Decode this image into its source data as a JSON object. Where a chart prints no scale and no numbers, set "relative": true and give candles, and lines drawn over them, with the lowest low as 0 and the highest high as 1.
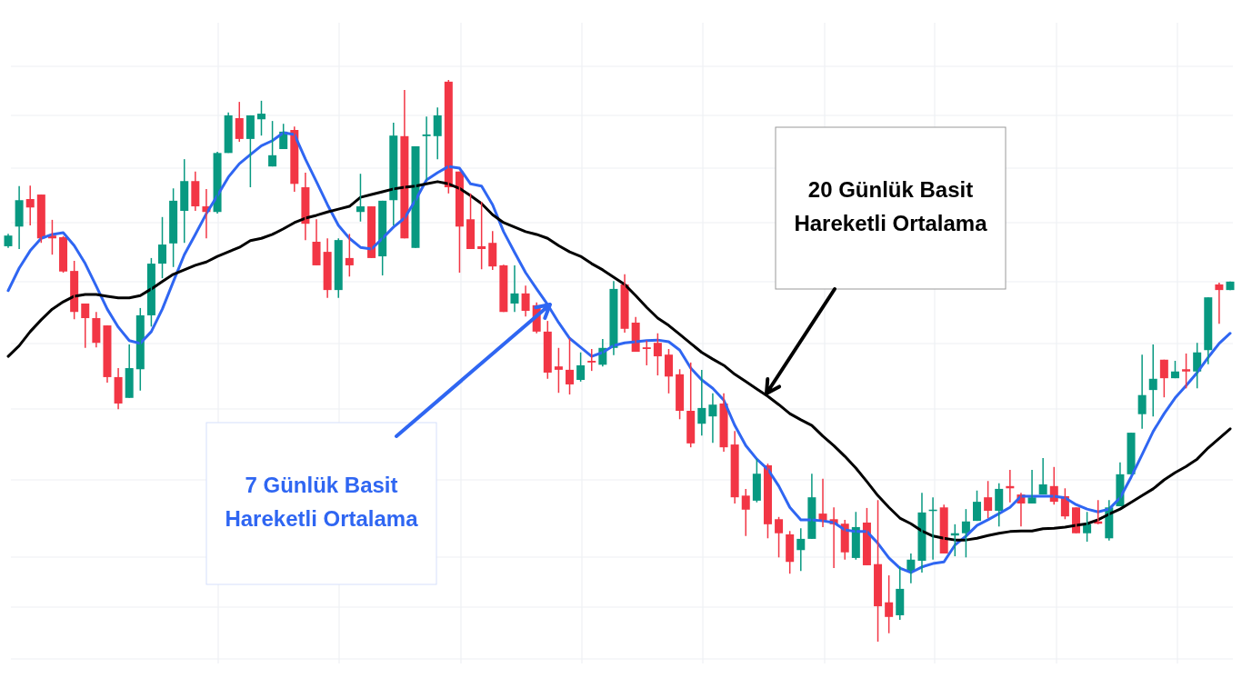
{
  "chart_data": {
    "type": "candlestick",
    "relative": true,
    "grid": true,
    "categories": [
      null,
      null,
      null,
      null,
      null,
      null,
      null,
      null,
      null,
      null,
      null,
      null,
      null,
      null,
      null,
      null,
      null,
      null,
      null,
      null,
      null,
      null,
      null,
      null,
      null,
      null,
      null,
      null,
      null,
      null,
      null,
      null,
      null,
      null,
      null,
      null,
      null,
      null,
      null,
      null,
      null,
      null,
      null,
      null,
      null,
      null,
      null,
      null,
      null,
      null,
      null,
      null,
      null,
      null,
      null,
      null,
      null,
      null,
      null,
      null,
      null,
      null,
      null,
      null,
      null,
      null,
      null,
      null,
      null,
      null,
      null,
      null,
      null,
      null,
      null,
      null,
      null,
      null,
      null,
      null,
      null,
      null,
      null,
      null,
      null,
      null,
      null,
      null,
      null,
      null,
      null,
      null,
      null,
      null,
      null,
      null,
      null,
      null,
      null,
      null,
      null,
      null,
      null,
      null,
      null,
      null,
      null,
      null,
      null,
      null,
      null,
      null
    ],
    "ohlc": [
      [
        0.704,
        0.726,
        0.701,
        0.723
      ],
      [
        0.739,
        0.811,
        0.699,
        0.786
      ],
      [
        0.788,
        0.812,
        0.741,
        0.773
      ],
      [
        0.796,
        0.796,
        0.71,
        0.718
      ],
      [
        0.723,
        0.751,
        0.689,
        0.718
      ],
      [
        0.72,
        0.722,
        0.657,
        0.659
      ],
      [
        0.66,
        0.678,
        0.574,
        0.587
      ],
      [
        0.602,
        0.602,
        0.523,
        0.576
      ],
      [
        0.576,
        0.587,
        0.524,
        0.532
      ],
      [
        0.563,
        0.563,
        0.461,
        0.471
      ],
      [
        0.471,
        0.487,
        0.414,
        0.424
      ],
      [
        0.434,
        0.529,
        0.434,
        0.487
      ],
      [
        0.485,
        0.594,
        0.447,
        0.581
      ],
      [
        0.581,
        0.683,
        0.561,
        0.673
      ],
      [
        0.673,
        0.756,
        0.647,
        0.707
      ],
      [
        0.709,
        0.807,
        0.667,
        0.785
      ],
      [
        0.767,
        0.859,
        0.71,
        0.82
      ],
      [
        0.82,
        0.837,
        0.767,
        0.775
      ],
      [
        0.775,
        0.806,
        0.718,
        0.765
      ],
      [
        0.765,
        0.872,
        0.762,
        0.87
      ],
      [
        0.87,
        0.942,
        0.87,
        0.937
      ],
      [
        0.932,
        0.961,
        0.89,
        0.895
      ],
      [
        0.895,
        0.937,
        0.809,
        0.937
      ],
      [
        0.93,
        0.963,
        0.901,
        0.94
      ],
      [
        0.846,
        0.927,
        0.846,
        0.866
      ],
      [
        0.877,
        0.922,
        0.877,
        0.908
      ],
      [
        0.911,
        0.917,
        0.801,
        0.815
      ],
      [
        0.809,
        0.835,
        0.715,
        0.744
      ],
      [
        0.712,
        0.752,
        0.67,
        0.67
      ],
      [
        0.694,
        0.718,
        0.612,
        0.626
      ],
      [
        0.626,
        0.718,
        0.612,
        0.715
      ],
      [
        0.683,
        0.726,
        0.65,
        0.67
      ],
      [
        0.765,
        0.833,
        0.748,
        0.775
      ],
      [
        0.775,
        0.775,
        0.683,
        0.683
      ],
      [
        0.686,
        0.785,
        0.652,
        0.785
      ],
      [
        0.786,
        0.924,
        0.741,
        0.901
      ],
      [
        0.9,
        0.982,
        0.718,
        0.718
      ],
      [
        0.701,
        0.882,
        0.701,
        0.882
      ],
      [
        0.9,
        0.935,
        0.822,
        0.903
      ],
      [
        0.9,
        0.951,
        0.859,
        0.937
      ],
      [
        0.997,
        1,
        0.798,
        0.809
      ],
      [
        0.837,
        0.837,
        0.657,
        0.739
      ],
      [
        0.752,
        0.798,
        0.699,
        0.699
      ],
      [
        0.704,
        0.783,
        0.663,
        0.699
      ],
      [
        0.71,
        0.731,
        0.662,
        0.668
      ],
      [
        0.67,
        0.671,
        0.587,
        0.587
      ],
      [
        0.602,
        0.67,
        0.587,
        0.62
      ],
      [
        0.62,
        0.634,
        0.579,
        0.589
      ],
      [
        0.599,
        0.604,
        0.549,
        0.552
      ],
      [
        0.552,
        0.571,
        0.468,
        0.479
      ],
      [
        0.49,
        0.523,
        0.443,
        0.484
      ],
      [
        0.484,
        0.54,
        0.44,
        0.458
      ],
      [
        0.466,
        0.515,
        0.463,
        0.492
      ],
      [
        0.5,
        0.521,
        0.482,
        0.497
      ],
      [
        0.493,
        0.539,
        0.49,
        0.523
      ],
      [
        0.523,
        0.642,
        0.51,
        0.628
      ],
      [
        0.636,
        0.654,
        0.55,
        0.557
      ],
      [
        0.568,
        0.578,
        0.516,
        0.516
      ],
      [
        0.524,
        0.536,
        0.492,
        0.521
      ],
      [
        0.532,
        0.549,
        0.474,
        0.508
      ],
      [
        0.511,
        0.521,
        0.442,
        0.472
      ],
      [
        0.476,
        0.485,
        0.396,
        0.411
      ],
      [
        0.411,
        0.497,
        0.346,
        0.353
      ],
      [
        0.388,
        0.484,
        0.367,
        0.416
      ],
      [
        0.401,
        0.442,
        0.354,
        0.422
      ],
      [
        0.424,
        0.442,
        0.338,
        0.346
      ],
      [
        0.351,
        0.375,
        0.246,
        0.257
      ],
      [
        0.26,
        0.272,
        0.188,
        0.235
      ],
      [
        0.251,
        0.325,
        0.248,
        0.299
      ],
      [
        0.314,
        0.317,
        0.184,
        0.209
      ],
      [
        0.218,
        0.222,
        0.15,
        0.193
      ],
      [
        0.191,
        0.197,
        0.121,
        0.142
      ],
      [
        0.163,
        0.202,
        0.126,
        0.183
      ],
      [
        0.183,
        0.299,
        0.183,
        0.257
      ],
      [
        0.228,
        0.29,
        0.204,
        0.215
      ],
      [
        0.218,
        0.239,
        0.131,
        0.209
      ],
      [
        0.21,
        0.217,
        0.146,
        0.159
      ],
      [
        0.149,
        0.231,
        0.146,
        0.204
      ],
      [
        0.212,
        0.238,
        0.136,
        0.136
      ],
      [
        0.138,
        0.252,
        0,
        0.063
      ],
      [
        0.07,
        0.118,
        0.015,
        0.044
      ],
      [
        0.047,
        0.134,
        0.039,
        0.094
      ],
      [
        0.126,
        0.157,
        0.104,
        0.146
      ],
      [
        0.144,
        0.265,
        0.123,
        0.23
      ],
      [
        0.233,
        0.257,
        0.146,
        0.235
      ],
      [
        0.239,
        0.244,
        0.157,
        0.157
      ],
      [
        0.189,
        0.209,
        0.152,
        0.193
      ],
      [
        0.193,
        0.236,
        0.15,
        0.214
      ],
      [
        0.215,
        0.269,
        0.215,
        0.249
      ],
      [
        0.257,
        0.286,
        0.22,
        0.233
      ],
      [
        0.233,
        0.282,
        0.205,
        0.272
      ],
      [
        0.277,
        0.306,
        0.248,
        0.273
      ],
      [
        0.262,
        0.265,
        0.205,
        0.246
      ],
      [
        0.246,
        0.306,
        0.246,
        0.257
      ],
      [
        0.262,
        0.327,
        0.262,
        0.28
      ],
      [
        0.277,
        0.311,
        0.244,
        0.249
      ],
      [
        0.259,
        0.273,
        0.218,
        0.223
      ],
      [
        0.239,
        0.239,
        0.193,
        0.193
      ],
      [
        0.193,
        0.231,
        0.178,
        0.209
      ],
      [
        0.214,
        0.252,
        0.209,
        0.21
      ],
      [
        0.184,
        0.252,
        0.18,
        0.239
      ],
      [
        0.241,
        0.319,
        0.241,
        0.298
      ],
      [
        0.298,
        0.372,
        0.298,
        0.372
      ],
      [
        0.405,
        0.511,
        0.379,
        0.439
      ],
      [
        0.448,
        0.529,
        0.401,
        0.468
      ],
      [
        0.502,
        0.502,
        0.435,
        0.469
      ],
      [
        0.469,
        0.5,
        0.469,
        0.481
      ],
      [
        0.485,
        0.513,
        0.451,
        0.481
      ],
      [
        0.481,
        0.532,
        0.451,
        0.515
      ],
      [
        0.519,
        0.613,
        0.494,
        0.613
      ],
      [
        0.636,
        0.639,
        0.566,
        0.626
      ],
      [
        0.626,
        0.641,
        0.626,
        0.641
      ]
    ],
    "series": [
      {
        "type": "line",
        "color": "#2f66f2",
        "values": [
          0.625,
          0.665,
          0.696,
          0.718,
          0.725,
          0.728,
          0.705,
          0.673,
          0.633,
          0.592,
          0.56,
          0.536,
          0.531,
          0.552,
          0.592,
          0.641,
          0.689,
          0.725,
          0.762,
          0.794,
          0.827,
          0.851,
          0.867,
          0.883,
          0.892,
          0.906,
          0.903,
          0.859,
          0.819,
          0.778,
          0.741,
          0.718,
          0.702,
          0.699,
          0.718,
          0.738,
          0.754,
          0.786,
          0.822,
          0.835,
          0.846,
          0.843,
          0.815,
          0.811,
          0.778,
          0.73,
          0.693,
          0.657,
          0.628,
          0.6,
          0.568,
          0.54,
          0.524,
          0.508,
          0.515,
          0.527,
          0.532,
          0.534,
          0.536,
          0.537,
          0.534,
          0.519,
          0.487,
          0.466,
          0.451,
          0.43,
          0.385,
          0.349,
          0.325,
          0.307,
          0.277,
          0.239,
          0.217,
          0.217,
          0.215,
          0.212,
          0.199,
          0.196,
          0.196,
          0.175,
          0.149,
          0.131,
          0.123,
          0.133,
          0.139,
          0.142,
          0.172,
          0.188,
          0.207,
          0.217,
          0.228,
          0.239,
          0.259,
          0.259,
          0.259,
          0.259,
          0.256,
          0.244,
          0.236,
          0.231,
          0.236,
          0.256,
          0.293,
          0.333,
          0.374,
          0.406,
          0.434,
          0.456,
          0.479,
          0.506,
          0.531,
          0.549
        ]
      },
      {
        "type": "line",
        "color": "#000000",
        "values": [
          0.508,
          0.527,
          0.552,
          0.573,
          0.592,
          0.605,
          0.615,
          0.618,
          0.618,
          0.615,
          0.612,
          0.612,
          0.616,
          0.628,
          0.641,
          0.654,
          0.662,
          0.67,
          0.676,
          0.686,
          0.694,
          0.702,
          0.714,
          0.718,
          0.725,
          0.735,
          0.746,
          0.754,
          0.759,
          0.765,
          0.77,
          0.775,
          0.791,
          0.796,
          0.801,
          0.806,
          0.809,
          0.811,
          0.815,
          0.819,
          0.815,
          0.807,
          0.794,
          0.78,
          0.76,
          0.746,
          0.738,
          0.73,
          0.725,
          0.718,
          0.705,
          0.694,
          0.686,
          0.673,
          0.662,
          0.649,
          0.636,
          0.616,
          0.595,
          0.576,
          0.563,
          0.547,
          0.531,
          0.515,
          0.503,
          0.492,
          0.476,
          0.463,
          0.45,
          0.437,
          0.422,
          0.406,
          0.395,
          0.385,
          0.366,
          0.349,
          0.33,
          0.309,
          0.285,
          0.26,
          0.239,
          0.22,
          0.21,
          0.197,
          0.188,
          0.184,
          0.181,
          0.181,
          0.184,
          0.189,
          0.193,
          0.196,
          0.197,
          0.197,
          0.201,
          0.202,
          0.204,
          0.207,
          0.21,
          0.217,
          0.227,
          0.236,
          0.248,
          0.26,
          0.272,
          0.288,
          0.301,
          0.312,
          0.325,
          0.345,
          0.362,
          0.379
        ]
      }
    ],
    "annotations": [
      "7 Günlük Basit Hareketli Ortalama",
      "20 Günlük Basit Hareketli Ortalama"
    ]
  }
}
